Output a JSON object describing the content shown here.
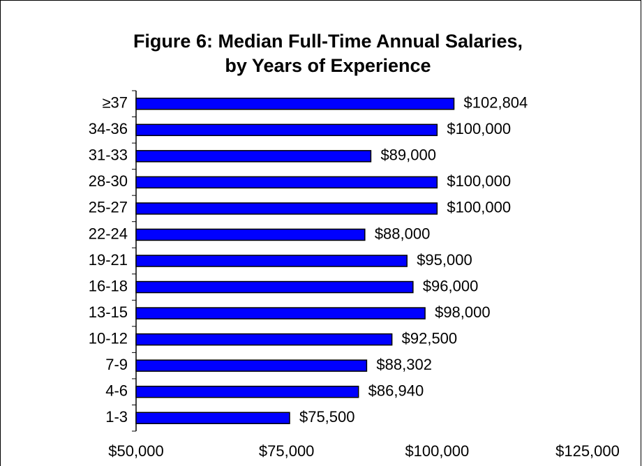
{
  "chart_data": {
    "type": "bar",
    "orientation": "horizontal",
    "title": [
      "Figure 6: Median Full-Time Annual Salaries,",
      "by Years of Experience"
    ],
    "categories": [
      "≥37",
      "34-36",
      "31-33",
      "28-30",
      "25-27",
      "22-24",
      "19-21",
      "16-18",
      "13-15",
      "10-12",
      "7-9",
      "4-6",
      "1-3"
    ],
    "values": [
      102804,
      100000,
      89000,
      100000,
      100000,
      88000,
      95000,
      96000,
      98000,
      92500,
      88302,
      86940,
      75500
    ],
    "value_labels": [
      "$102,804",
      "$100,000",
      "$89,000",
      "$100,000",
      "$100,000",
      "$88,000",
      "$95,000",
      "$96,000",
      "$98,000",
      "$92,500",
      "$88,302",
      "$86,940",
      "$75,500"
    ],
    "color": "#0000ff",
    "xlim": [
      50000,
      125000
    ],
    "xticks": [
      {
        "value": 50000,
        "label": "$50,000"
      },
      {
        "value": 75000,
        "label": "$75,000"
      },
      {
        "value": 100000,
        "label": "$100,000"
      },
      {
        "value": 125000,
        "label": "$125,000"
      }
    ]
  }
}
